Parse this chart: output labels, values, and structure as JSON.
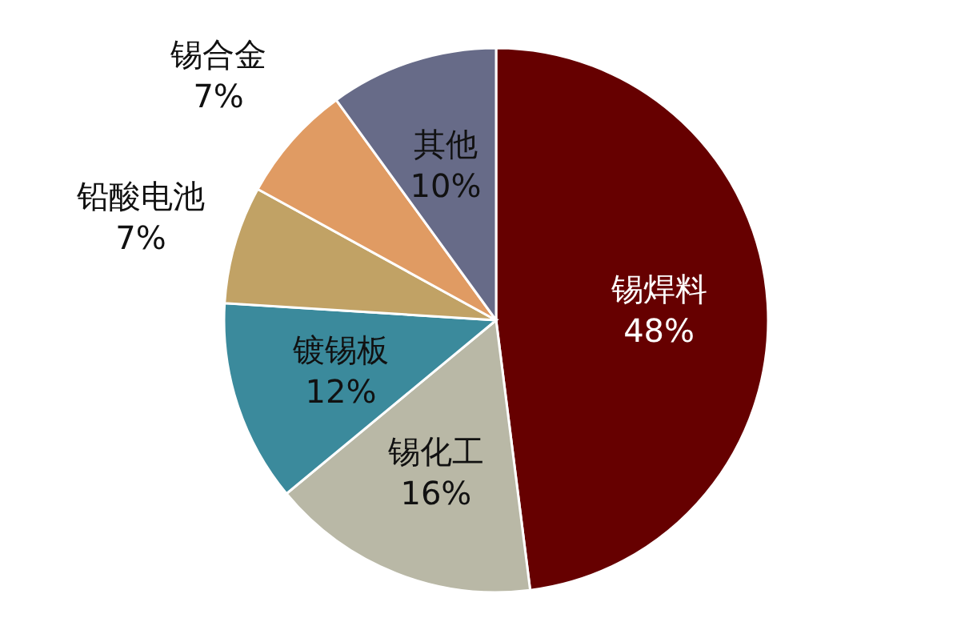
{
  "chart_data": {
    "type": "pie",
    "categories": [
      "锡焊料",
      "锡化工",
      "镀锡板",
      "铅酸电池",
      "锡合金",
      "其他"
    ],
    "values": [
      48,
      16,
      12,
      7,
      7,
      10
    ],
    "colors": [
      "#660000",
      "#b9b8a6",
      "#3b8a9c",
      "#c1a265",
      "#e09b63",
      "#676b88"
    ],
    "value_labels": [
      "48%",
      "16%",
      "12%",
      "7%",
      "7%",
      "10%"
    ]
  }
}
